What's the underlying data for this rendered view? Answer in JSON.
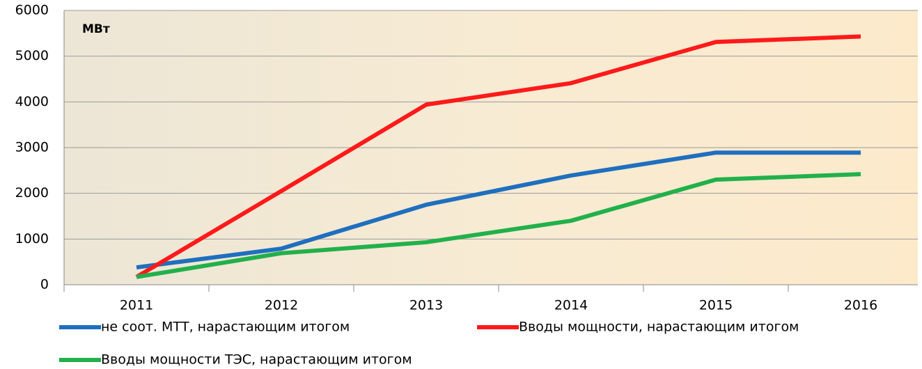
{
  "chart_data": {
    "type": "line",
    "unit_label": "МВт",
    "categories": [
      "2011",
      "2012",
      "2013",
      "2014",
      "2015",
      "2016"
    ],
    "series": [
      {
        "name": "не соот. МТТ, нарастающим итогом",
        "color": "#1f6fbf",
        "values": [
          380,
          790,
          1750,
          2390,
          2890,
          2890
        ]
      },
      {
        "name": "Вводы мощности, нарастающим итогом",
        "color": "#ff1a1a",
        "values": [
          170,
          2050,
          3940,
          4410,
          5310,
          5430
        ]
      },
      {
        "name": "Вводы мощности ТЭС, нарастающим итогом",
        "color": "#22b04b",
        "values": [
          170,
          690,
          930,
          1400,
          2300,
          2420
        ]
      }
    ],
    "ylim": [
      0,
      6000
    ],
    "yticks": [
      0,
      1000,
      2000,
      3000,
      4000,
      5000,
      6000
    ],
    "grid": true,
    "legend": "bottom"
  }
}
